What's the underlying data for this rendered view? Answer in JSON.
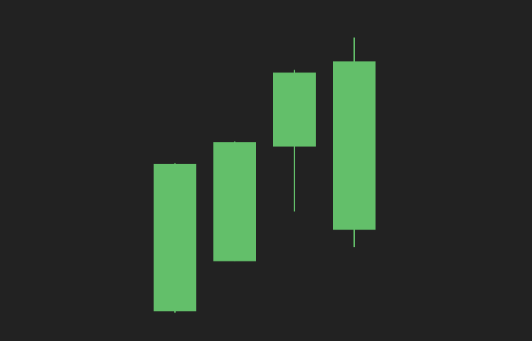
{
  "colors": {
    "background": "#222222",
    "bullish": "#63bf6a"
  },
  "chart_data": {
    "type": "candlestick",
    "title": "",
    "xlabel": "",
    "ylabel": "",
    "grid": false,
    "axes_visible": false,
    "ylim": [
      0,
      100
    ],
    "candles": [
      {
        "open": 8.7,
        "high": 52.1,
        "low": 8.3,
        "close": 51.9
      },
      {
        "open": 23.4,
        "high": 58.5,
        "low": 23.4,
        "close": 58.3
      },
      {
        "open": 57.0,
        "high": 79.5,
        "low": 38.0,
        "close": 78.7
      },
      {
        "open": 32.6,
        "high": 89.0,
        "low": 27.5,
        "close": 82.0
      }
    ]
  }
}
